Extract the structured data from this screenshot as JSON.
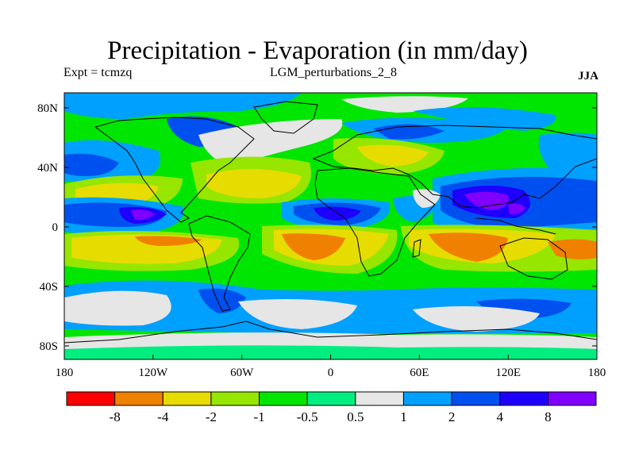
{
  "title": "Precipitation - Evaporation (in mm/day)",
  "subtitle_left": "Expt = tcmzq",
  "subtitle_center": "LGM_perturbations_2_8",
  "subtitle_right": "JJA",
  "lat_ticks": [
    "80N",
    "40N",
    "0",
    "40S",
    "80S"
  ],
  "lon_ticks": [
    "180",
    "120W",
    "60W",
    "0",
    "60E",
    "120E",
    "180"
  ],
  "colorbar": {
    "colors": [
      "#ff0000",
      "#f08000",
      "#e6dc00",
      "#96e600",
      "#00e600",
      "#00ee80",
      "#e6e6e6",
      "#00a0ff",
      "#0050f0",
      "#1e00ff",
      "#8000ff"
    ],
    "labels": [
      "-8",
      "-4",
      "-2",
      "-1",
      "-0.5",
      "0.5",
      "1",
      "2",
      "4",
      "8"
    ]
  },
  "palette": {
    "green": "#00e600",
    "seagreen": "#00ee80",
    "lime": "#96e600",
    "yellow": "#e6dc00",
    "orange": "#f08000",
    "gray": "#e6e6e6",
    "lightblue": "#00a0ff",
    "blue": "#0050f0",
    "darkblue": "#1e00ff",
    "purple": "#8000ff"
  }
}
